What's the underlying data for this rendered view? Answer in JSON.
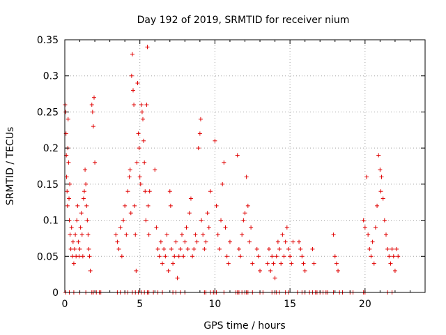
{
  "chart_data": {
    "type": "scatter",
    "title": "Day 192 of 2019, SRMTID for receiver nium",
    "xlabel": "GPS time / hours",
    "ylabel": "SRMTID / TECUs",
    "xlim": [
      0,
      24
    ],
    "ylim": [
      0,
      0.35
    ],
    "xticks": [
      0,
      5,
      10,
      15,
      20
    ],
    "xtick_labels": [
      "0",
      "5",
      "10",
      "15",
      "20"
    ],
    "yticks": [
      0,
      0.05,
      0.1,
      0.15,
      0.2,
      0.25,
      0.3,
      0.35
    ],
    "ytick_labels": [
      "0",
      "0.05",
      "0.1",
      "0.15",
      "0.2",
      "0.25",
      "0.3",
      "0.35"
    ],
    "grid": true,
    "marker": "plus",
    "color": "#e00000",
    "series": [
      {
        "name": "SRMTID",
        "points": [
          [
            0.02,
            0.26
          ],
          [
            0.05,
            0.25
          ],
          [
            0.08,
            0.22
          ],
          [
            0.1,
            0.19
          ],
          [
            0.12,
            0.16
          ],
          [
            0.15,
            0.14
          ],
          [
            0.18,
            0.12
          ],
          [
            0.2,
            0.2
          ],
          [
            0.22,
            0.24
          ],
          [
            0.25,
            0.18
          ],
          [
            0.28,
            0.13
          ],
          [
            0.3,
            0.1
          ],
          [
            0.33,
            0.15
          ],
          [
            0.35,
            0.08
          ],
          [
            0.4,
            0.06
          ],
          [
            0.45,
            0.09
          ],
          [
            0.5,
            0.05
          ],
          [
            0.55,
            0.07
          ],
          [
            0.6,
            0.04
          ],
          [
            0.65,
            0.06
          ],
          [
            0.7,
            0.08
          ],
          [
            0.75,
            0.05
          ],
          [
            0.8,
            0.1
          ],
          [
            0.85,
            0.12
          ],
          [
            0.9,
            0.07
          ],
          [
            0.95,
            0.05
          ],
          [
            1.0,
            0.06
          ],
          [
            1.05,
            0.09
          ],
          [
            1.1,
            0.11
          ],
          [
            1.15,
            0.08
          ],
          [
            1.2,
            0.05
          ],
          [
            1.25,
            0.13
          ],
          [
            1.3,
            0.14
          ],
          [
            1.35,
            0.17
          ],
          [
            1.4,
            0.15
          ],
          [
            1.45,
            0.12
          ],
          [
            1.5,
            0.1
          ],
          [
            1.55,
            0.08
          ],
          [
            1.6,
            0.06
          ],
          [
            1.65,
            0.05
          ],
          [
            1.7,
            0.03
          ],
          [
            1.8,
            0.26
          ],
          [
            1.85,
            0.25
          ],
          [
            1.9,
            0.23
          ],
          [
            1.95,
            0.27
          ],
          [
            2.0,
            0.18
          ],
          [
            3.4,
            0.08
          ],
          [
            3.5,
            0.07
          ],
          [
            3.6,
            0.06
          ],
          [
            3.7,
            0.09
          ],
          [
            3.8,
            0.05
          ],
          [
            3.9,
            0.1
          ],
          [
            4.0,
            0.12
          ],
          [
            4.1,
            0.08
          ],
          [
            4.2,
            0.14
          ],
          [
            4.3,
            0.16
          ],
          [
            4.35,
            0.17
          ],
          [
            4.4,
            0.11
          ],
          [
            4.45,
            0.3
          ],
          [
            4.5,
            0.33
          ],
          [
            4.55,
            0.28
          ],
          [
            4.6,
            0.26
          ],
          [
            4.65,
            0.12
          ],
          [
            4.7,
            0.08
          ],
          [
            4.75,
            0.03
          ],
          [
            4.8,
            0.18
          ],
          [
            4.85,
            0.29
          ],
          [
            4.9,
            0.22
          ],
          [
            4.95,
            0.2
          ],
          [
            5.0,
            0.16
          ],
          [
            5.05,
            0.15
          ],
          [
            5.1,
            0.26
          ],
          [
            5.15,
            0.25
          ],
          [
            5.2,
            0.24
          ],
          [
            5.25,
            0.21
          ],
          [
            5.3,
            0.18
          ],
          [
            5.35,
            0.14
          ],
          [
            5.4,
            0.1
          ],
          [
            5.45,
            0.26
          ],
          [
            5.5,
            0.34
          ],
          [
            5.55,
            0.12
          ],
          [
            5.6,
            0.08
          ],
          [
            5.65,
            0.14
          ],
          [
            6.0,
            0.17
          ],
          [
            6.1,
            0.09
          ],
          [
            6.2,
            0.06
          ],
          [
            6.3,
            0.05
          ],
          [
            6.4,
            0.07
          ],
          [
            6.5,
            0.04
          ],
          [
            6.6,
            0.06
          ],
          [
            6.7,
            0.05
          ],
          [
            6.8,
            0.08
          ],
          [
            6.9,
            0.03
          ],
          [
            7.0,
            0.14
          ],
          [
            7.05,
            0.12
          ],
          [
            7.1,
            0.06
          ],
          [
            7.2,
            0.04
          ],
          [
            7.3,
            0.05
          ],
          [
            7.4,
            0.07
          ],
          [
            7.5,
            0.02
          ],
          [
            7.6,
            0.05
          ],
          [
            7.7,
            0.06
          ],
          [
            7.8,
            0.08
          ],
          [
            7.9,
            0.05
          ],
          [
            8.0,
            0.07
          ],
          [
            8.1,
            0.09
          ],
          [
            8.2,
            0.06
          ],
          [
            8.3,
            0.11
          ],
          [
            8.4,
            0.13
          ],
          [
            8.5,
            0.05
          ],
          [
            8.6,
            0.06
          ],
          [
            8.7,
            0.08
          ],
          [
            8.8,
            0.07
          ],
          [
            8.9,
            0.2
          ],
          [
            9.0,
            0.22
          ],
          [
            9.05,
            0.24
          ],
          [
            9.1,
            0.1
          ],
          [
            9.2,
            0.08
          ],
          [
            9.3,
            0.06
          ],
          [
            9.4,
            0.07
          ],
          [
            9.5,
            0.11
          ],
          [
            9.6,
            0.09
          ],
          [
            9.7,
            0.14
          ],
          [
            10.0,
            0.21
          ],
          [
            10.1,
            0.12
          ],
          [
            10.2,
            0.08
          ],
          [
            10.3,
            0.06
          ],
          [
            10.4,
            0.1
          ],
          [
            10.5,
            0.15
          ],
          [
            10.6,
            0.18
          ],
          [
            10.7,
            0.09
          ],
          [
            10.8,
            0.05
          ],
          [
            10.9,
            0.04
          ],
          [
            11.0,
            0.07
          ],
          [
            11.5,
            0.19
          ],
          [
            11.6,
            0.06
          ],
          [
            11.7,
            0.05
          ],
          [
            11.8,
            0.08
          ],
          [
            11.9,
            0.1
          ],
          [
            12.0,
            0.11
          ],
          [
            12.1,
            0.16
          ],
          [
            12.2,
            0.12
          ],
          [
            12.3,
            0.07
          ],
          [
            12.4,
            0.09
          ],
          [
            12.5,
            0.04
          ],
          [
            12.8,
            0.06
          ],
          [
            12.9,
            0.05
          ],
          [
            13.0,
            0.03
          ],
          [
            13.5,
            0.04
          ],
          [
            13.6,
            0.06
          ],
          [
            13.7,
            0.03
          ],
          [
            13.8,
            0.05
          ],
          [
            13.9,
            0.04
          ],
          [
            14.0,
            0.02
          ],
          [
            14.1,
            0.05
          ],
          [
            14.2,
            0.07
          ],
          [
            14.3,
            0.06
          ],
          [
            14.4,
            0.04
          ],
          [
            14.5,
            0.08
          ],
          [
            14.6,
            0.05
          ],
          [
            14.7,
            0.07
          ],
          [
            14.8,
            0.09
          ],
          [
            14.9,
            0.06
          ],
          [
            15.0,
            0.05
          ],
          [
            15.1,
            0.04
          ],
          [
            15.2,
            0.07
          ],
          [
            15.6,
            0.07
          ],
          [
            15.7,
            0.06
          ],
          [
            15.8,
            0.05
          ],
          [
            15.9,
            0.04
          ],
          [
            16.0,
            0.03
          ],
          [
            16.5,
            0.06
          ],
          [
            16.6,
            0.04
          ],
          [
            17.9,
            0.08
          ],
          [
            18.0,
            0.05
          ],
          [
            18.1,
            0.04
          ],
          [
            18.2,
            0.03
          ],
          [
            19.9,
            0.1
          ],
          [
            20.0,
            0.09
          ],
          [
            20.1,
            0.16
          ],
          [
            20.2,
            0.08
          ],
          [
            20.3,
            0.06
          ],
          [
            20.4,
            0.05
          ],
          [
            20.5,
            0.07
          ],
          [
            20.6,
            0.04
          ],
          [
            20.7,
            0.09
          ],
          [
            20.8,
            0.12
          ],
          [
            20.9,
            0.19
          ],
          [
            21.0,
            0.17
          ],
          [
            21.05,
            0.14
          ],
          [
            21.1,
            0.16
          ],
          [
            21.2,
            0.13
          ],
          [
            21.3,
            0.1
          ],
          [
            21.4,
            0.08
          ],
          [
            21.5,
            0.06
          ],
          [
            21.6,
            0.05
          ],
          [
            21.7,
            0.04
          ],
          [
            21.8,
            0.06
          ],
          [
            21.9,
            0.05
          ],
          [
            22.0,
            0.03
          ],
          [
            22.1,
            0.06
          ],
          [
            22.2,
            0.05
          ]
        ]
      }
    ],
    "zero_points_x": [
      0.05,
      0.3,
      0.6,
      1.0,
      1.4,
      1.8,
      1.9,
      2.1,
      2.3,
      2.4,
      3.5,
      3.7,
      4.0,
      4.2,
      4.5,
      4.7,
      4.9,
      5.1,
      5.3,
      5.5,
      5.6,
      5.9,
      6.2,
      6.5,
      7.2,
      7.4,
      7.7,
      8.0,
      9.3,
      9.4,
      9.7,
      9.9,
      10.0,
      10.1,
      10.6,
      11.4,
      11.5,
      11.6,
      11.8,
      12.0,
      12.1,
      12.2,
      12.5,
      13.0,
      13.2,
      13.8,
      14.0,
      14.1,
      14.3,
      14.7,
      14.9,
      15.5,
      15.8,
      16.0,
      16.3,
      16.5,
      16.7,
      16.8,
      17.0,
      17.2,
      17.4,
      17.5,
      17.9,
      18.3,
      18.5,
      19.0,
      19.2,
      19.9,
      20.0,
      21.5,
      21.8
    ]
  }
}
